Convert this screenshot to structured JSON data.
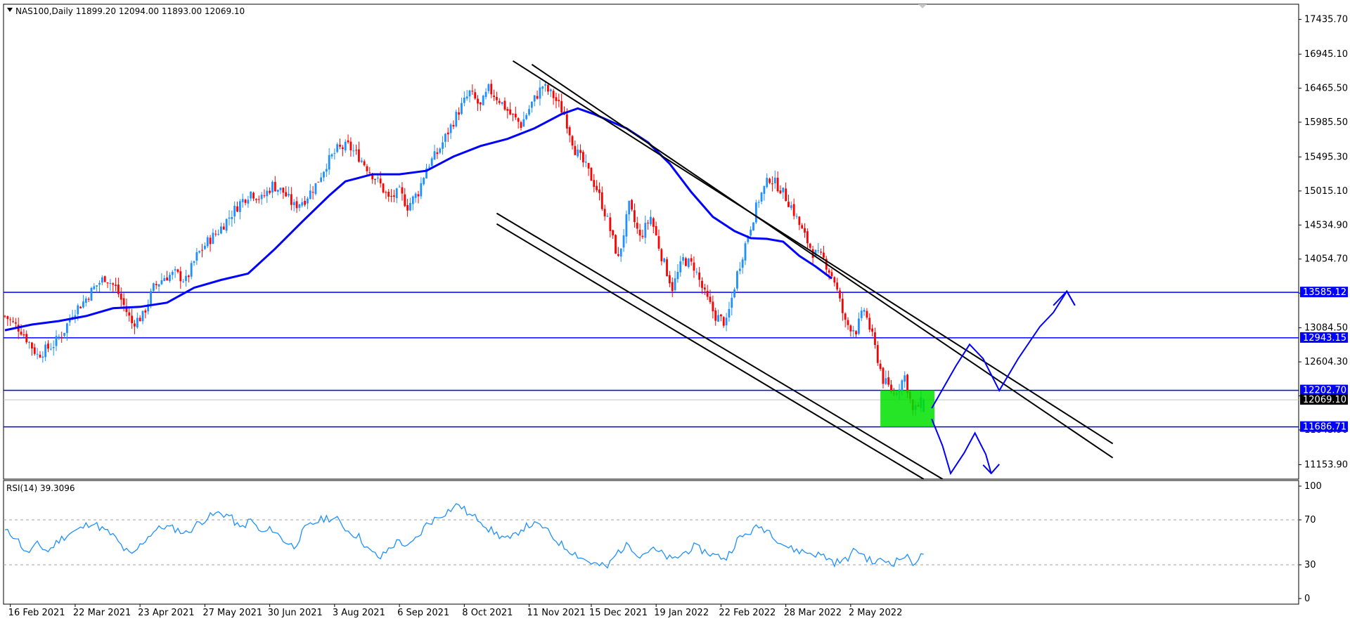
{
  "header": {
    "symbol_info": "NAS100,Daily  11899.20 12094.00 11893.00 12069.10",
    "rsi_label": "RSI(14) 39.3096"
  },
  "colors": {
    "bull": "#1e90ff",
    "bear": "#ff0000",
    "ma": "#0000ff",
    "level": "#0000ff",
    "channel": "#000000",
    "rsi": "#1e90ff",
    "zone": "#00e000",
    "arrow": "#0000ff"
  },
  "chart_data": [
    {
      "type": "candlestick",
      "title": "",
      "instrument": "NAS100",
      "timeframe": "Daily",
      "last_bar": {
        "open": 11899.2,
        "high": 12094.0,
        "low": 11893.0,
        "close": 12069.1
      },
      "y_ticks": [
        "17435.70",
        "16945.10",
        "16465.50",
        "15985.50",
        "15495.30",
        "15015.10",
        "14534.90",
        "14054.70",
        "13574.50",
        "13084.50",
        "12604.30",
        "12124.10",
        "11643.90",
        "11153.90"
      ],
      "x_ticks": [
        "16 Feb 2021",
        "22 Mar 2021",
        "23 Apr 2021",
        "27 May 2021",
        "30 Jun 2021",
        "3 Aug 2021",
        "6 Sep 2021",
        "8 Oct 2021",
        "11 Nov 2021",
        "15 Dec 2021",
        "19 Jan 2022",
        "22 Feb 2022",
        "28 Mar 2022",
        "2 May 2022"
      ],
      "ylim": [
        10950,
        17650
      ],
      "grid": false,
      "close_path": [
        [
          0,
          13250
        ],
        [
          6,
          13050
        ],
        [
          12,
          12700
        ],
        [
          18,
          12850
        ],
        [
          22,
          13050
        ],
        [
          25,
          13300
        ],
        [
          29,
          13450
        ],
        [
          33,
          13650
        ],
        [
          37,
          13800
        ],
        [
          41,
          13650
        ],
        [
          44,
          13400
        ],
        [
          47,
          13150
        ],
        [
          51,
          13250
        ],
        [
          55,
          13650
        ],
        [
          59,
          13800
        ],
        [
          63,
          13850
        ],
        [
          67,
          13750
        ],
        [
          71,
          14100
        ],
        [
          75,
          14300
        ],
        [
          79,
          14450
        ],
        [
          83,
          14650
        ],
        [
          87,
          14850
        ],
        [
          91,
          15000
        ],
        [
          95,
          14900
        ],
        [
          99,
          15100
        ],
        [
          103,
          15000
        ],
        [
          107,
          14800
        ],
        [
          111,
          14900
        ],
        [
          115,
          15100
        ],
        [
          119,
          15400
        ],
        [
          123,
          15600
        ],
        [
          127,
          15650
        ],
        [
          131,
          15500
        ],
        [
          135,
          15300
        ],
        [
          139,
          15100
        ],
        [
          142,
          14900
        ],
        [
          146,
          15000
        ],
        [
          149,
          14800
        ],
        [
          153,
          15000
        ],
        [
          156,
          15350
        ],
        [
          160,
          15550
        ],
        [
          164,
          15850
        ],
        [
          168,
          16150
        ],
        [
          172,
          16400
        ],
        [
          176,
          16200
        ],
        [
          179,
          16450
        ],
        [
          183,
          16300
        ],
        [
          187,
          16100
        ],
        [
          191,
          15950
        ],
        [
          195,
          16250
        ],
        [
          199,
          16500
        ],
        [
          203,
          16350
        ],
        [
          207,
          16100
        ],
        [
          211,
          15600
        ],
        [
          215,
          15350
        ],
        [
          219,
          15050
        ],
        [
          223,
          14600
        ],
        [
          227,
          14050
        ],
        [
          231,
          14800
        ],
        [
          235,
          14350
        ],
        [
          239,
          14650
        ],
        [
          243,
          14100
        ],
        [
          247,
          13650
        ],
        [
          251,
          14050
        ],
        [
          255,
          13950
        ],
        [
          259,
          13550
        ],
        [
          263,
          13250
        ],
        [
          267,
          13150
        ],
        [
          271,
          13850
        ],
        [
          275,
          14400
        ],
        [
          279,
          14900
        ],
        [
          283,
          15200
        ],
        [
          287,
          15050
        ],
        [
          291,
          14800
        ],
        [
          295,
          14450
        ],
        [
          299,
          14150
        ],
        [
          303,
          14050
        ],
        [
          307,
          13750
        ],
        [
          311,
          13150
        ],
        [
          315,
          13050
        ],
        [
          318,
          13350
        ],
        [
          321,
          12950
        ],
        [
          325,
          12350
        ],
        [
          329,
          12150
        ],
        [
          333,
          12400
        ],
        [
          336,
          11900
        ],
        [
          340,
          12069
        ]
      ],
      "candle_seed": 7
    },
    {
      "type": "line",
      "title": "",
      "indicator": "RSI(14)",
      "value": 39.3096,
      "ylim": [
        0,
        100
      ],
      "y_ticks": [
        "100",
        "70",
        "30",
        "0"
      ],
      "levels": [
        70,
        30
      ],
      "series": [
        [
          0,
          60
        ],
        [
          4,
          55
        ],
        [
          8,
          40
        ],
        [
          12,
          48
        ],
        [
          16,
          42
        ],
        [
          20,
          52
        ],
        [
          24,
          58
        ],
        [
          28,
          62
        ],
        [
          32,
          68
        ],
        [
          36,
          62
        ],
        [
          40,
          56
        ],
        [
          44,
          44
        ],
        [
          47,
          38
        ],
        [
          51,
          50
        ],
        [
          55,
          60
        ],
        [
          59,
          64
        ],
        [
          63,
          62
        ],
        [
          67,
          58
        ],
        [
          71,
          66
        ],
        [
          75,
          72
        ],
        [
          79,
          76
        ],
        [
          83,
          74
        ],
        [
          87,
          62
        ],
        [
          91,
          70
        ],
        [
          95,
          58
        ],
        [
          99,
          62
        ],
        [
          103,
          52
        ],
        [
          107,
          46
        ],
        [
          111,
          62
        ],
        [
          115,
          68
        ],
        [
          119,
          72
        ],
        [
          123,
          70
        ],
        [
          127,
          60
        ],
        [
          131,
          55
        ],
        [
          135,
          42
        ],
        [
          139,
          36
        ],
        [
          142,
          44
        ],
        [
          146,
          52
        ],
        [
          149,
          45
        ],
        [
          153,
          55
        ],
        [
          156,
          66
        ],
        [
          160,
          72
        ],
        [
          164,
          78
        ],
        [
          168,
          84
        ],
        [
          172,
          74
        ],
        [
          176,
          70
        ],
        [
          179,
          62
        ],
        [
          183,
          56
        ],
        [
          187,
          52
        ],
        [
          191,
          62
        ],
        [
          195,
          66
        ],
        [
          199,
          64
        ],
        [
          203,
          54
        ],
        [
          207,
          46
        ],
        [
          211,
          40
        ],
        [
          215,
          34
        ],
        [
          219,
          30
        ],
        [
          223,
          28
        ],
        [
          227,
          42
        ],
        [
          231,
          48
        ],
        [
          235,
          38
        ],
        [
          239,
          44
        ],
        [
          243,
          40
        ],
        [
          247,
          34
        ],
        [
          251,
          40
        ],
        [
          255,
          46
        ],
        [
          259,
          42
        ],
        [
          263,
          38
        ],
        [
          267,
          36
        ],
        [
          271,
          52
        ],
        [
          275,
          58
        ],
        [
          279,
          64
        ],
        [
          283,
          60
        ],
        [
          287,
          50
        ],
        [
          291,
          44
        ],
        [
          295,
          42
        ],
        [
          299,
          40
        ],
        [
          303,
          38
        ],
        [
          307,
          32
        ],
        [
          311,
          34
        ],
        [
          315,
          44
        ],
        [
          318,
          38
        ],
        [
          321,
          32
        ],
        [
          325,
          34
        ],
        [
          329,
          32
        ],
        [
          333,
          38
        ],
        [
          336,
          32
        ],
        [
          340,
          39
        ]
      ]
    }
  ],
  "overlays": {
    "ma_path": [
      [
        0,
        13050
      ],
      [
        10,
        13130
      ],
      [
        20,
        13180
      ],
      [
        30,
        13250
      ],
      [
        40,
        13360
      ],
      [
        50,
        13380
      ],
      [
        60,
        13440
      ],
      [
        70,
        13650
      ],
      [
        80,
        13760
      ],
      [
        90,
        13850
      ],
      [
        100,
        14200
      ],
      [
        110,
        14580
      ],
      [
        120,
        14950
      ],
      [
        126,
        15150
      ],
      [
        136,
        15250
      ],
      [
        146,
        15250
      ],
      [
        156,
        15300
      ],
      [
        166,
        15500
      ],
      [
        176,
        15650
      ],
      [
        186,
        15750
      ],
      [
        196,
        15900
      ],
      [
        206,
        16100
      ],
      [
        212,
        16180
      ],
      [
        218,
        16100
      ],
      [
        224,
        16000
      ],
      [
        230,
        15900
      ],
      [
        238,
        15700
      ],
      [
        246,
        15400
      ],
      [
        254,
        15000
      ],
      [
        262,
        14650
      ],
      [
        270,
        14450
      ],
      [
        276,
        14350
      ],
      [
        282,
        14340
      ],
      [
        288,
        14300
      ],
      [
        294,
        14100
      ],
      [
        300,
        13950
      ],
      [
        306,
        13780
      ]
    ],
    "levels": [
      {
        "price": "13585.12",
        "value": 13585.12,
        "x_from": 0
      },
      {
        "price": "12943.15",
        "value": 12943.15,
        "x_from": 0
      },
      {
        "price": "12202.70",
        "value": 12202.7,
        "x_from": 0
      },
      {
        "price": "11686.71",
        "value": 11686.71,
        "x_from": 0
      }
    ],
    "last_price_tag": "12069.10",
    "channel_upper": [
      [
        [
          188,
          16850
        ],
        [
          410,
          11450
        ]
      ],
      [
        [
          195,
          16800
        ],
        [
          410,
          11250
        ]
      ]
    ],
    "channel_lower": [
      [
        [
          182,
          14700
        ],
        [
          347,
          10950
        ]
      ],
      [
        [
          182,
          14550
        ],
        [
          340,
          10950
        ]
      ]
    ],
    "zone": {
      "x1": 324,
      "x2": 344,
      "top": 12202.7,
      "bottom": 11686.71
    },
    "arrow_up": [
      [
        343,
        11950
      ],
      [
        352,
        12550
      ],
      [
        357,
        12850
      ],
      [
        362,
        12650
      ],
      [
        368,
        12200
      ],
      [
        375,
        12650
      ],
      [
        383,
        13100
      ],
      [
        388,
        13300
      ],
      [
        393,
        13600
      ],
      [
        396,
        13400
      ]
    ],
    "arrow_up_head": [
      [
        388,
        13400
      ],
      [
        393,
        13600
      ],
      [
        396,
        13400
      ]
    ],
    "arrow_down": [
      [
        343,
        11800
      ],
      [
        347,
        11420
      ],
      [
        350,
        11030
      ],
      [
        355,
        11320
      ],
      [
        359,
        11600
      ],
      [
        363,
        11300
      ],
      [
        365,
        11030
      ]
    ],
    "arrow_down_head": [
      [
        362,
        11150
      ],
      [
        365,
        11030
      ],
      [
        368,
        11160
      ]
    ]
  }
}
